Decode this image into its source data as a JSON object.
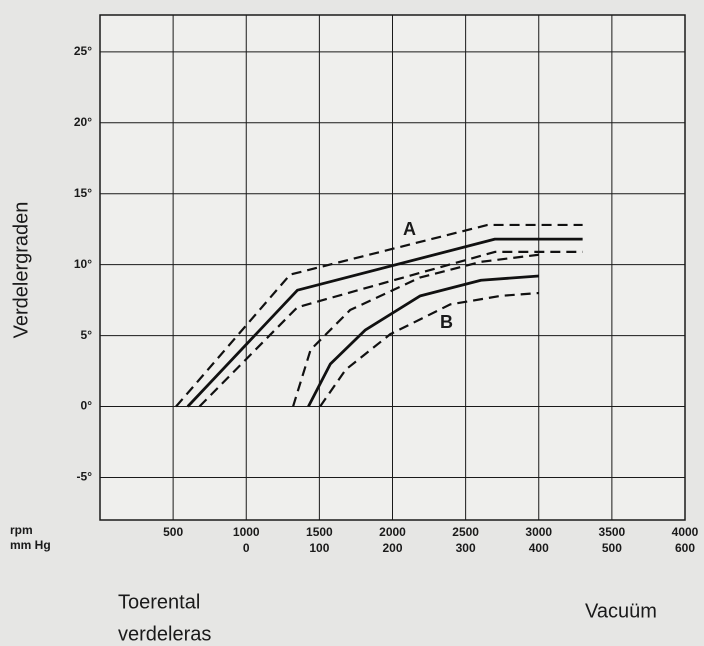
{
  "chart_data": {
    "type": "line",
    "ylabel": "Verdelergraden",
    "xunit": "rpm",
    "x2unit": "mm Hg",
    "xlabel": [
      "Toerental",
      "verdeleras"
    ],
    "x2label": "Vacuüm",
    "annotations": [
      "A",
      "B"
    ],
    "xlim": [
      0,
      4000
    ],
    "xticks": [
      500,
      1000,
      1500,
      2000,
      2500,
      3000,
      3500,
      4000
    ],
    "x2lim": [
      -200,
      600
    ],
    "x2ticks": [
      0,
      100,
      200,
      300,
      400,
      500,
      600
    ],
    "ylim": [
      -8,
      27.6
    ],
    "yticks": [
      {
        "value": -5,
        "label": "-5°"
      },
      {
        "value": 0,
        "label": "0°"
      },
      {
        "value": 5,
        "label": "5°"
      },
      {
        "value": 10,
        "label": "10°"
      },
      {
        "value": 15,
        "label": "15°"
      },
      {
        "value": 20,
        "label": "20°"
      },
      {
        "value": 25,
        "label": "25°"
      }
    ],
    "grid": true,
    "series": [
      {
        "color": "#111111",
        "dash": false,
        "axis": "x",
        "x": [
          600,
          1350,
          2700,
          3300
        ],
        "values": [
          0,
          8.2,
          11.8,
          11.8
        ]
      },
      {
        "color": "#111111",
        "dash": true,
        "axis": "x",
        "x": [
          520,
          1300,
          2650,
          3300
        ],
        "values": [
          0,
          9.3,
          12.8,
          12.8
        ]
      },
      {
        "color": "#111111",
        "dash": true,
        "axis": "x",
        "x": [
          680,
          1350,
          2700,
          3300
        ],
        "values": [
          0,
          7.0,
          10.9,
          10.9
        ]
      },
      {
        "color": "#111111",
        "dash": false,
        "axis": "x2",
        "x": [
          85,
          115,
          163,
          238,
          321,
          400
        ],
        "values": [
          0,
          3.0,
          5.4,
          7.8,
          8.9,
          9.2
        ]
      },
      {
        "color": "#111111",
        "dash": true,
        "axis": "x2",
        "x": [
          64,
          88,
          142,
          238,
          321,
          400
        ],
        "values": [
          0,
          4.0,
          6.8,
          9.1,
          10.2,
          10.7
        ]
      },
      {
        "color": "#111111",
        "dash": true,
        "axis": "x2",
        "x": [
          101,
          136,
          197,
          279,
          348,
          400
        ],
        "values": [
          0,
          2.6,
          5.1,
          7.2,
          7.8,
          8.0
        ]
      }
    ]
  }
}
